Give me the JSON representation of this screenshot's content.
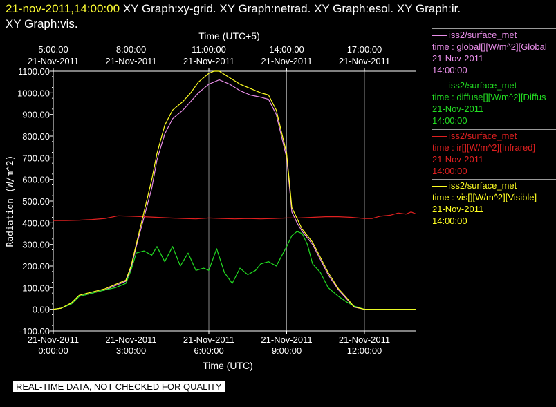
{
  "header": {
    "datetime": "21-nov-2011,14:00:00",
    "line1_rest": "XY Graph:xy-grid.  XY Graph:netrad.  XY Graph:esol.  XY Graph:ir.",
    "line2": "XY Graph:vis."
  },
  "footnote": "REAL-TIME DATA, NOT CHECKED FOR QUALITY",
  "colors": {
    "global": "#e98ee9",
    "diffuse": "#22dd22",
    "ir": "#e02020",
    "vis": "#ffff22",
    "divider": "#9a9a9a"
  },
  "legend": [
    {
      "name": "iss2/surface_met",
      "var": "time : global[][W/m^2][Global",
      "date": "21-Nov-2011",
      "time": "14:00:00",
      "color": "#e98ee9"
    },
    {
      "name": "iss2/surface_met",
      "var": "time : diffuse[][W/m^2][Diffus",
      "date": "21-Nov-2011",
      "time": "14:00:00",
      "color": "#22dd22"
    },
    {
      "name": "iss2/surface_met",
      "var": "time : ir[][W/m^2][Infrared]",
      "date": "21-Nov-2011",
      "time": "14:00:00",
      "color": "#e02020"
    },
    {
      "name": "iss2/surface_met",
      "var": "time : vis[][W/m^2][Visible]",
      "date": "21-Nov-2011",
      "time": "14:00:00",
      "color": "#ffff22"
    }
  ],
  "chart_data": {
    "type": "line",
    "xlabel": "Time (UTC)",
    "x2label": "Time (UTC+5)",
    "ylabel": "Radiation (W/m^2)",
    "xlim": [
      "21-Nov-2011 0:00",
      "21-Nov-2011 14:00"
    ],
    "ylim": [
      -100,
      1100
    ],
    "yticks": [
      "-100.00",
      "0.00",
      "100.00",
      "200.00",
      "300.00",
      "400.00",
      "500.00",
      "600.00",
      "700.00",
      "800.00",
      "900.00",
      "1000.00",
      "1100.00"
    ],
    "xticks_bottom": [
      {
        "date": "21-Nov-2011",
        "time": "0:00:00"
      },
      {
        "date": "21-Nov-2011",
        "time": "3:00:00"
      },
      {
        "date": "21-Nov-2011",
        "time": "6:00:00"
      },
      {
        "date": "21-Nov-2011",
        "time": "9:00:00"
      },
      {
        "date": "21-Nov-2011",
        "time": "12:00:00"
      }
    ],
    "xticks_top": [
      {
        "time": "5:00:00",
        "date": "21-Nov-2011"
      },
      {
        "time": "8:00:00",
        "date": "21-Nov-2011"
      },
      {
        "time": "11:00:00",
        "date": "21-Nov-2011"
      },
      {
        "time": "14:00:00",
        "date": "21-Nov-2011"
      },
      {
        "time": "17:00:00",
        "date": "21-Nov-2011"
      }
    ],
    "grid": "vertical",
    "legend_position": "right",
    "series": [
      {
        "name": "global",
        "color": "#e98ee9",
        "x": [
          0,
          0.3,
          0.7,
          1,
          1.5,
          2,
          2.4,
          2.8,
          3,
          3.2,
          3.4,
          3.6,
          3.8,
          4,
          4.3,
          4.6,
          5,
          5.3,
          5.6,
          6,
          6.2,
          6.4,
          6.8,
          7.2,
          7.6,
          8,
          8.3,
          8.6,
          9,
          9.2,
          9.4,
          9.6,
          9.8,
          10,
          10.3,
          10.6,
          11,
          11.3,
          11.6,
          12,
          12.3,
          12.6,
          13,
          13.5,
          14
        ],
        "y": [
          0,
          5,
          25,
          60,
          75,
          90,
          110,
          130,
          190,
          290,
          380,
          470,
          560,
          690,
          810,
          880,
          920,
          960,
          1000,
          1040,
          1050,
          1060,
          1040,
          1010,
          990,
          980,
          970,
          900,
          700,
          450,
          400,
          360,
          330,
          300,
          230,
          160,
          90,
          50,
          10,
          0,
          0,
          0,
          0,
          0,
          0
        ]
      },
      {
        "name": "diffuse",
        "color": "#22dd22",
        "x": [
          0,
          0.3,
          0.7,
          1,
          1.5,
          2,
          2.4,
          2.8,
          3,
          3.2,
          3.5,
          3.8,
          4,
          4.3,
          4.6,
          4.9,
          5.2,
          5.5,
          5.8,
          6,
          6.3,
          6.6,
          6.9,
          7.2,
          7.5,
          7.8,
          8,
          8.3,
          8.6,
          9,
          9.2,
          9.4,
          9.6,
          9.8,
          10,
          10.3,
          10.6,
          11,
          11.3,
          11.6,
          12,
          12.3,
          12.6,
          13,
          13.5,
          14
        ],
        "y": [
          0,
          5,
          25,
          60,
          75,
          90,
          100,
          120,
          180,
          260,
          270,
          250,
          290,
          220,
          290,
          200,
          260,
          180,
          190,
          180,
          280,
          170,
          120,
          190,
          160,
          180,
          210,
          220,
          200,
          290,
          340,
          360,
          350,
          300,
          210,
          170,
          100,
          60,
          35,
          15,
          0,
          0,
          0,
          0,
          0,
          0
        ]
      },
      {
        "name": "ir",
        "color": "#e02020",
        "x": [
          0,
          0.5,
          1,
          1.5,
          2,
          2.5,
          3,
          3.5,
          4,
          4.5,
          5,
          5.5,
          6,
          6.5,
          7,
          7.5,
          8,
          8.5,
          9,
          9.5,
          10,
          10.5,
          11,
          11.5,
          12,
          12.3,
          12.6,
          13,
          13.3,
          13.6,
          13.8,
          14
        ],
        "y": [
          410,
          410,
          412,
          415,
          420,
          432,
          430,
          428,
          425,
          422,
          420,
          418,
          422,
          420,
          418,
          420,
          418,
          420,
          422,
          422,
          425,
          428,
          428,
          425,
          420,
          420,
          430,
          435,
          445,
          440,
          450,
          440
        ]
      },
      {
        "name": "vis",
        "color": "#ffff22",
        "x": [
          0,
          0.3,
          0.7,
          1,
          1.5,
          2,
          2.4,
          2.8,
          3,
          3.2,
          3.4,
          3.6,
          3.8,
          4,
          4.3,
          4.6,
          5,
          5.3,
          5.6,
          6,
          6.2,
          6.4,
          6.8,
          7.2,
          7.6,
          8,
          8.3,
          8.6,
          9,
          9.2,
          9.4,
          9.6,
          9.8,
          10,
          10.3,
          10.6,
          11,
          11.3,
          11.6,
          12,
          12.3,
          12.6,
          13,
          13.5,
          14
        ],
        "y": [
          0,
          5,
          30,
          65,
          80,
          95,
          115,
          135,
          200,
          300,
          400,
          500,
          600,
          720,
          850,
          920,
          960,
          1000,
          1050,
          1090,
          1100,
          1100,
          1070,
          1040,
          1020,
          1000,
          990,
          920,
          720,
          470,
          420,
          370,
          340,
          310,
          240,
          170,
          95,
          55,
          12,
          0,
          0,
          0,
          0,
          0,
          0
        ]
      }
    ]
  }
}
